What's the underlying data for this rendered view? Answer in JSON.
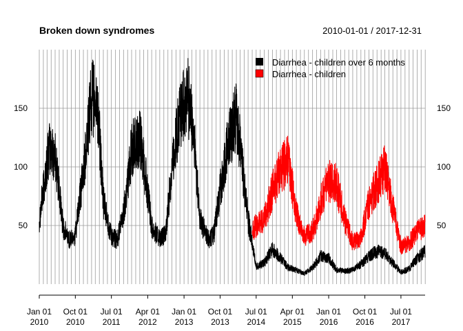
{
  "chart_data": {
    "type": "line",
    "title": "Broken down syndromes",
    "date_range_label": "2010-01-01 / 2017-12-31",
    "x_range": [
      "2010-01-01",
      "2017-12-31"
    ],
    "ylim": [
      0,
      200
    ],
    "y_ticks": [
      50,
      100,
      150
    ],
    "y_tick_labels": [
      "50",
      "100",
      "150"
    ],
    "x_ticks": [
      {
        "date": "2010-01-01",
        "line1": "Jan 01",
        "line2": "2010"
      },
      {
        "date": "2010-10-01",
        "line1": "Oct 01",
        "line2": "2010"
      },
      {
        "date": "2011-07-01",
        "line1": "Jul 01",
        "line2": "2011"
      },
      {
        "date": "2012-04-01",
        "line1": "Apr 01",
        "line2": "2012"
      },
      {
        "date": "2013-01-01",
        "line1": "Jan 01",
        "line2": "2013"
      },
      {
        "date": "2013-10-01",
        "line1": "Oct 01",
        "line2": "2013"
      },
      {
        "date": "2014-07-01",
        "line1": "Jul 01",
        "line2": "2014"
      },
      {
        "date": "2015-04-01",
        "line1": "Apr 01",
        "line2": "2015"
      },
      {
        "date": "2016-01-01",
        "line1": "Jan 01",
        "line2": "2016"
      },
      {
        "date": "2016-10-01",
        "line1": "Oct 01",
        "line2": "2016"
      },
      {
        "date": "2017-07-01",
        "line1": "Jul 01",
        "line2": "2017"
      }
    ],
    "grid": true,
    "legend_position": "top-right",
    "series": [
      {
        "name": "Diarrhea - children over 6 months",
        "color": "#000000",
        "x": [
          "2010-01-01",
          "2010-03-15",
          "2010-05-01",
          "2010-07-01",
          "2010-08-15",
          "2010-10-01",
          "2010-12-01",
          "2011-02-01",
          "2011-03-20",
          "2011-05-01",
          "2011-07-01",
          "2011-08-15",
          "2011-10-01",
          "2011-12-01",
          "2012-02-01",
          "2012-03-20",
          "2012-05-01",
          "2012-07-01",
          "2012-08-15",
          "2012-10-01",
          "2012-12-01",
          "2013-02-01",
          "2013-03-20",
          "2013-05-01",
          "2013-07-01",
          "2013-08-15",
          "2013-10-01",
          "2013-12-01",
          "2014-02-01",
          "2014-03-20",
          "2014-05-01",
          "2014-07-01",
          "2014-09-01",
          "2014-11-01",
          "2015-01-01",
          "2015-03-01",
          "2015-05-01",
          "2015-07-01",
          "2015-09-01",
          "2015-11-01",
          "2016-01-01",
          "2016-03-01",
          "2016-05-01",
          "2016-07-01",
          "2016-09-01",
          "2016-11-01",
          "2017-01-01",
          "2017-03-01",
          "2017-05-01",
          "2017-07-01",
          "2017-09-01",
          "2017-11-01",
          "2017-12-31"
        ],
        "values": [
          55,
          115,
          110,
          48,
          38,
          42,
          95,
          160,
          150,
          70,
          40,
          38,
          60,
          115,
          125,
          88,
          50,
          38,
          42,
          100,
          145,
          160,
          120,
          55,
          38,
          42,
          80,
          120,
          145,
          100,
          55,
          15,
          18,
          30,
          22,
          14,
          12,
          9,
          14,
          24,
          22,
          12,
          11,
          12,
          17,
          24,
          28,
          26,
          18,
          10,
          13,
          22,
          28
        ]
      },
      {
        "name": "Diarrhea - children",
        "color": "#ff0000",
        "x": [
          "2014-06-01",
          "2014-07-01",
          "2014-09-01",
          "2014-11-01",
          "2015-01-01",
          "2015-03-01",
          "2015-05-01",
          "2015-07-01",
          "2015-09-01",
          "2015-11-01",
          "2016-01-01",
          "2016-03-01",
          "2016-05-01",
          "2016-07-01",
          "2016-09-01",
          "2016-11-01",
          "2017-01-01",
          "2017-03-01",
          "2017-05-01",
          "2017-07-01",
          "2017-09-01",
          "2017-11-01",
          "2017-12-31"
        ],
        "values": [
          45,
          50,
          55,
          80,
          98,
          105,
          60,
          40,
          45,
          70,
          88,
          85,
          55,
          35,
          40,
          70,
          85,
          100,
          65,
          32,
          35,
          45,
          50
        ]
      }
    ]
  }
}
